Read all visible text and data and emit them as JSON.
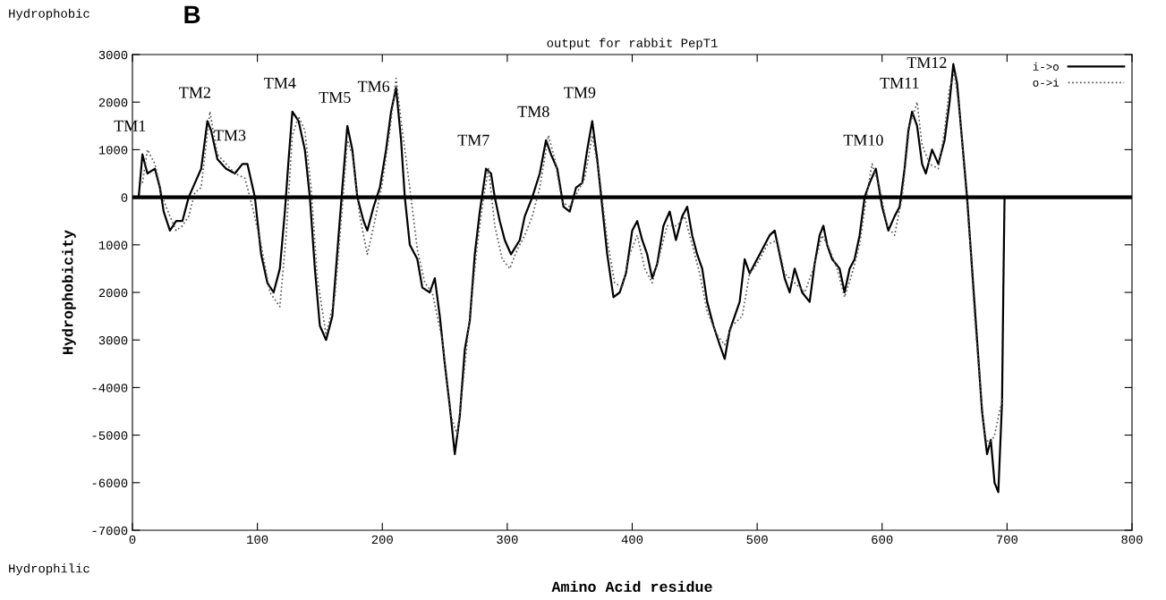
{
  "chart_data": {
    "type": "line",
    "title": "output for rabbit PepT1",
    "xlabel": "Amino Acid residue",
    "ylabel": "Hydrophobicity",
    "xlim": [
      0,
      800
    ],
    "xticks": [
      0,
      100,
      200,
      300,
      400,
      500,
      600,
      700,
      800
    ],
    "ylim": [
      -7000,
      3000
    ],
    "yticks": [
      {
        "value": -7000,
        "label": "-7000"
      },
      {
        "value": -6000,
        "label": "-6000"
      },
      {
        "value": -5000,
        "label": "-5000"
      },
      {
        "value": -4000,
        "label": "-4000"
      },
      {
        "value": -3000,
        "label": "3000"
      },
      {
        "value": -2000,
        "label": "2000"
      },
      {
        "value": -1000,
        "label": "1000"
      },
      {
        "value": 0,
        "label": "0"
      },
      {
        "value": 1000,
        "label": "1000"
      },
      {
        "value": 2000,
        "label": "2000"
      },
      {
        "value": 3000,
        "label": "3000"
      }
    ],
    "grid": false,
    "legend": "top right",
    "marker": "none",
    "ref_lines": [
      {
        "axis": "y",
        "value": 0,
        "color": "#000000",
        "line_style": "solid"
      }
    ],
    "series": [
      {
        "name": "i->o",
        "color": "#000000",
        "line_style": "solid",
        "x": [
          5,
          8,
          12,
          18,
          22,
          25,
          30,
          35,
          40,
          45,
          50,
          55,
          60,
          63,
          68,
          75,
          82,
          88,
          92,
          98,
          103,
          108,
          113,
          118,
          122,
          125,
          128,
          133,
          138,
          142,
          146,
          150,
          155,
          160,
          165,
          168,
          172,
          176,
          180,
          185,
          188,
          193,
          198,
          203,
          207,
          211,
          215,
          218,
          222,
          228,
          232,
          238,
          242,
          246,
          250,
          254,
          258,
          262,
          266,
          270,
          274,
          278,
          283,
          287,
          290,
          294,
          298,
          303,
          310,
          314,
          320,
          326,
          331,
          335,
          340,
          345,
          350,
          355,
          360,
          364,
          368,
          372,
          376,
          380,
          385,
          390,
          395,
          400,
          404,
          408,
          412,
          416,
          420,
          425,
          430,
          435,
          440,
          444,
          448,
          452,
          456,
          460,
          465,
          470,
          474,
          478,
          482,
          486,
          490,
          494,
          498,
          502,
          506,
          510,
          514,
          518,
          522,
          526,
          530,
          536,
          542,
          546,
          550,
          553,
          556,
          560,
          566,
          570,
          574,
          578,
          582,
          586,
          590,
          595,
          600,
          605,
          610,
          614,
          618,
          621,
          624,
          628,
          632,
          635,
          640,
          645,
          650,
          654,
          657,
          660,
          664,
          668,
          672,
          676,
          680,
          684,
          687,
          690,
          693,
          696,
          697,
          698
        ],
        "values": [
          0,
          900,
          500,
          600,
          200,
          -300,
          -700,
          -500,
          -500,
          0,
          300,
          600,
          1600,
          1400,
          800,
          600,
          500,
          700,
          700,
          0,
          -1200,
          -1800,
          -2000,
          -1500,
          -300,
          800,
          1800,
          1600,
          1000,
          0,
          -1500,
          -2700,
          -3000,
          -2500,
          -800,
          200,
          1500,
          1000,
          0,
          -500,
          -700,
          -200,
          200,
          1000,
          1800,
          2300,
          1200,
          0,
          -1000,
          -1300,
          -1900,
          -2000,
          -1700,
          -2500,
          -3500,
          -4400,
          -5400,
          -4600,
          -3200,
          -2600,
          -1200,
          -300,
          600,
          500,
          0,
          -500,
          -900,
          -1200,
          -900,
          -400,
          0,
          500,
          1200,
          900,
          600,
          -200,
          -300,
          200,
          300,
          1000,
          1600,
          800,
          -200,
          -1200,
          -2100,
          -2000,
          -1600,
          -700,
          -500,
          -900,
          -1200,
          -1700,
          -1400,
          -600,
          -300,
          -900,
          -400,
          -200,
          -800,
          -1200,
          -1500,
          -2200,
          -2700,
          -3100,
          -3400,
          -2800,
          -2500,
          -2200,
          -1300,
          -1600,
          -1400,
          -1200,
          -1000,
          -800,
          -700,
          -1200,
          -1700,
          -2000,
          -1500,
          -2000,
          -2200,
          -1400,
          -800,
          -600,
          -1000,
          -1300,
          -1500,
          -2000,
          -1500,
          -1300,
          -800,
          0,
          300,
          600,
          -200,
          -700,
          -400,
          -200,
          600,
          1400,
          1800,
          1500,
          700,
          500,
          1000,
          700,
          1200,
          2000,
          2800,
          2400,
          1200,
          0,
          -1500,
          -3000,
          -4500,
          -5400,
          -5100,
          -6000,
          -6200,
          -4300,
          -2000,
          0
        ]
      },
      {
        "name": "o->i",
        "color": "#555555",
        "line_style": "dotted",
        "x": [
          8,
          12,
          18,
          24,
          30,
          35,
          40,
          45,
          50,
          55,
          62,
          68,
          75,
          82,
          90,
          96,
          103,
          110,
          118,
          123,
          128,
          133,
          138,
          143,
          148,
          155,
          162,
          168,
          172,
          176,
          182,
          188,
          194,
          200,
          206,
          211,
          216,
          222,
          228,
          234,
          240,
          248,
          255,
          260,
          265,
          270,
          276,
          281,
          285,
          290,
          296,
          302,
          308,
          314,
          320,
          326,
          333,
          338,
          344,
          350,
          356,
          362,
          368,
          374,
          380,
          386,
          392,
          398,
          404,
          410,
          416,
          422,
          428,
          436,
          442,
          448,
          454,
          460,
          468,
          474,
          480,
          488,
          494,
          500,
          508,
          516,
          522,
          530,
          538,
          545,
          552,
          558,
          564,
          570,
          576,
          582,
          588,
          592,
          598,
          604,
          610,
          616,
          622,
          628,
          632,
          638,
          645,
          650,
          654,
          658,
          662,
          666,
          670,
          674,
          678,
          682,
          686,
          690,
          694,
          697
        ],
        "values": [
          300,
          1000,
          700,
          0,
          -400,
          -700,
          -600,
          -400,
          100,
          200,
          1800,
          900,
          700,
          500,
          400,
          -200,
          -1000,
          -2000,
          -2300,
          -800,
          1300,
          1700,
          1400,
          200,
          -1700,
          -2900,
          -2100,
          -200,
          1200,
          900,
          -400,
          -1200,
          -500,
          300,
          1400,
          2500,
          1400,
          200,
          -1100,
          -1800,
          -2000,
          -3000,
          -4600,
          -5000,
          -3800,
          -2500,
          -1000,
          0,
          600,
          -600,
          -1300,
          -1500,
          -1100,
          -800,
          -400,
          200,
          1300,
          800,
          -100,
          -200,
          100,
          400,
          1300,
          400,
          -900,
          -1800,
          -1900,
          -1200,
          -800,
          -1500,
          -1800,
          -1200,
          -600,
          -600,
          -400,
          -1000,
          -1600,
          -2400,
          -2900,
          -3100,
          -2700,
          -2500,
          -1600,
          -1400,
          -1000,
          -900,
          -1600,
          -1800,
          -2000,
          -1500,
          -800,
          -1100,
          -1500,
          -2100,
          -1600,
          -1000,
          100,
          700,
          200,
          -600,
          -800,
          0,
          1500,
          2000,
          1100,
          700,
          600,
          1400,
          2300,
          2600,
          1800,
          500,
          -800,
          -2500,
          -3800,
          -5000,
          -5200,
          -5000,
          -4500,
          -4200
        ]
      }
    ],
    "annotations": [
      "Hydrophobic",
      "Hydrophilic",
      "B",
      {
        "text": "TM1",
        "x": 8,
        "y": 900
      },
      {
        "text": "TM2",
        "x": 60,
        "y": 1600
      },
      {
        "text": "TM3",
        "x": 88,
        "y": 700
      },
      {
        "text": "TM4",
        "x": 128,
        "y": 1800
      },
      {
        "text": "TM5",
        "x": 172,
        "y": 1500
      },
      {
        "text": "TM6",
        "x": 211,
        "y": 2300
      },
      {
        "text": "TM7",
        "x": 283,
        "y": 600
      },
      {
        "text": "TM8",
        "x": 331,
        "y": 1200
      },
      {
        "text": "TM9",
        "x": 368,
        "y": 1600
      },
      {
        "text": "TM10",
        "x": 595,
        "y": 600
      },
      {
        "text": "TM11",
        "x": 624,
        "y": 1800
      },
      {
        "text": "TM12",
        "x": 657,
        "y": 2800
      }
    ]
  }
}
